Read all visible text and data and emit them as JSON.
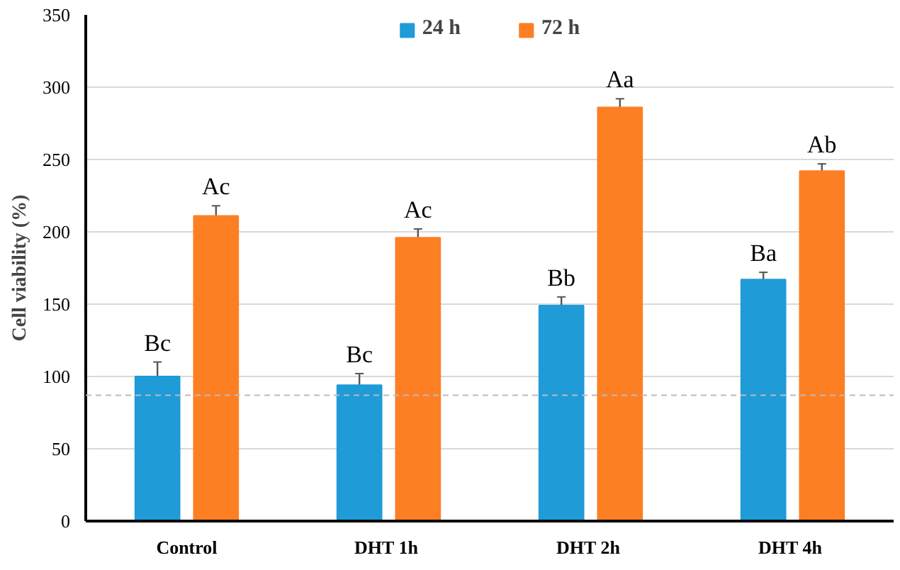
{
  "chart_data": {
    "type": "bar",
    "ylabel": "Cell viability (%)",
    "categories": [
      "Control",
      "DHT  1h",
      "DHT  2h",
      "DHT  4h"
    ],
    "series": [
      {
        "name": "24 h",
        "color": "#1f9bd7",
        "values": [
          100,
          94,
          149,
          167
        ],
        "errors": [
          10,
          8,
          6,
          5
        ],
        "value_labels": [
          "Bc",
          "Bc",
          "Bb",
          "Ba"
        ]
      },
      {
        "name": "72 h",
        "color": "#fd7f23",
        "values": [
          211,
          196,
          286,
          242
        ],
        "errors": [
          7,
          6,
          6,
          5
        ],
        "value_labels": [
          "Ac",
          "Ac",
          "Aa",
          "Ab"
        ]
      }
    ],
    "ylim": [
      0,
      350
    ],
    "yticks": [
      0,
      50,
      100,
      150,
      200,
      250,
      300,
      350
    ],
    "grid": "y",
    "legend": "top",
    "ref_lines": [
      {
        "axis": "y",
        "value": 87,
        "color": "#bbbbbb",
        "line_style": "dashed"
      }
    ]
  }
}
